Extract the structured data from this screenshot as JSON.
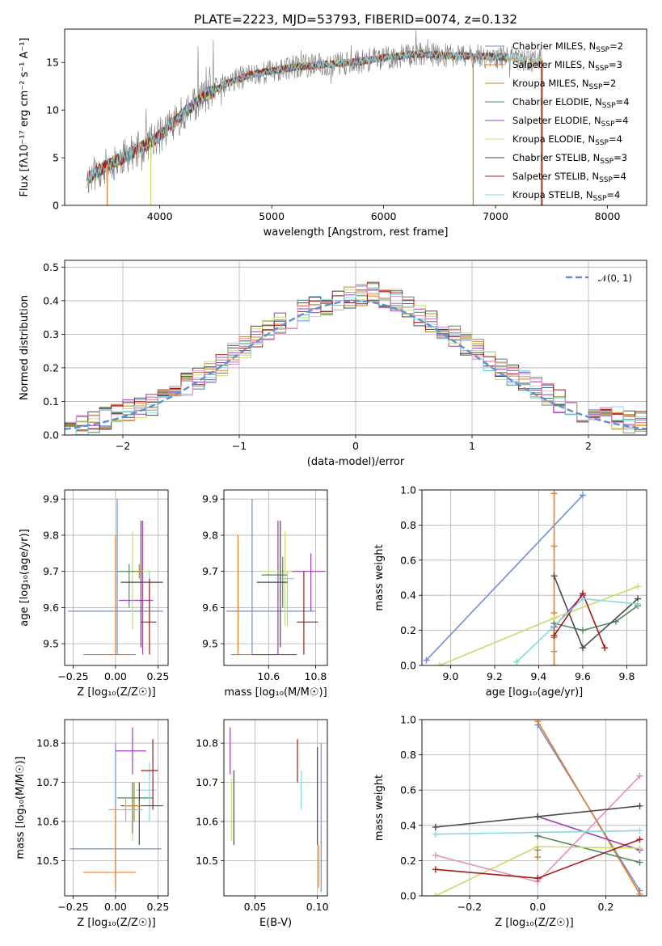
{
  "title": "PLATE=2223, MJD=53793, FIBERID=0074, z=0.132",
  "models": [
    {
      "name": "Chabrier MILES",
      "nssp": "2",
      "color": "#6d8fd6"
    },
    {
      "name": "Salpeter MILES",
      "nssp": "3",
      "color": "#e87d2a"
    },
    {
      "name": "Kroupa MILES",
      "nssp": "2",
      "color": "#b58a2e"
    },
    {
      "name": "Chabrier ELODIE",
      "nssp": "4",
      "color": "#4f8a5f"
    },
    {
      "name": "Salpeter ELODIE",
      "nssp": "4",
      "color": "#9b3cb6"
    },
    {
      "name": "Kroupa ELODIE",
      "nssp": "4",
      "color": "#c6dd6a"
    },
    {
      "name": "Chabrier STELIB",
      "nssp": "3",
      "color": "#4a4a4a"
    },
    {
      "name": "Salpeter STELIB",
      "nssp": "4",
      "color": "#a31a1a"
    },
    {
      "name": "Kroupa STELIB",
      "nssp": "4",
      "color": "#87d8e0"
    }
  ],
  "chart_data": [
    {
      "type": "line",
      "xlabel": "wavelength [Angstrom, rest frame]",
      "ylabel": "Flux [fλ10⁻¹⁷ erg cm⁻² s⁻¹ A⁻¹]",
      "xlim": [
        3150,
        8350
      ],
      "ylim": [
        0,
        18.5
      ],
      "xticks": [
        4000,
        5000,
        6000,
        7000,
        8000
      ],
      "yticks": [
        0,
        5,
        10,
        15
      ],
      "grid": false,
      "legend": "top-right",
      "series_note": "observed spectrum (grey) with nine overlapping model fits",
      "continuum": [
        [
          3350,
          2.8
        ],
        [
          3500,
          4.0
        ],
        [
          3700,
          5.2
        ],
        [
          3900,
          6.5
        ],
        [
          4000,
          7.3
        ],
        [
          4200,
          9.5
        ],
        [
          4400,
          11.5
        ],
        [
          4600,
          12.8
        ],
        [
          4800,
          13.7
        ],
        [
          5000,
          14.1
        ],
        [
          5200,
          14.5
        ],
        [
          5500,
          14.8
        ],
        [
          5800,
          15.1
        ],
        [
          6000,
          15.5
        ],
        [
          6300,
          15.9
        ],
        [
          6600,
          15.7
        ],
        [
          7000,
          15.6
        ],
        [
          7400,
          15.2
        ]
      ],
      "obs_end": 7420,
      "model_ends": [
        7100,
        7420,
        7100,
        7100,
        7100,
        7100,
        7100,
        7100,
        7420
      ],
      "dropouts": [
        {
          "x": 3530,
          "model": 1
        },
        {
          "x": 3920,
          "model": 5
        },
        {
          "x": 6800,
          "model": 2
        },
        {
          "x": 7420,
          "model": 1
        },
        {
          "x": 7410,
          "model": 7
        }
      ]
    },
    {
      "type": "line",
      "xlabel": "(data-model)/error",
      "ylabel": "Normed distribution",
      "xlim": [
        -2.5,
        2.5
      ],
      "ylim": [
        0,
        0.52
      ],
      "xticks": [
        -2,
        -1,
        0,
        1,
        2
      ],
      "yticks": [
        0.0,
        0.1,
        0.2,
        0.3,
        0.4,
        0.5
      ],
      "grid": true,
      "legend": "top-right",
      "reference_label": "𝒩(0, 1)",
      "reference": "normal-pdf",
      "bin_width": 0.1,
      "base_hist": [
        0.03,
        0.03,
        0.04,
        0.05,
        0.06,
        0.07,
        0.08,
        0.09,
        0.11,
        0.13,
        0.15,
        0.17,
        0.19,
        0.21,
        0.24,
        0.26,
        0.29,
        0.31,
        0.33,
        0.35,
        0.37,
        0.38,
        0.39,
        0.4,
        0.41,
        0.42,
        0.42,
        0.41,
        0.4,
        0.38,
        0.36,
        0.34,
        0.32,
        0.29,
        0.27,
        0.25,
        0.22,
        0.2,
        0.18,
        0.16,
        0.14,
        0.12,
        0.1,
        0.09,
        0.07,
        0.06,
        0.05,
        0.05,
        0.04,
        0.04
      ]
    },
    {
      "type": "scatter",
      "xlabel": "Z [log₁₀(Z/Z☉)]",
      "ylabel": "age  [log₁₀(age/yr)]",
      "xlim": [
        -0.3,
        0.31
      ],
      "ylim": [
        9.44,
        9.925
      ],
      "xticks": [
        -0.25,
        0.0,
        0.25
      ],
      "yticks": [
        9.5,
        9.6,
        9.7,
        9.8,
        9.9
      ],
      "grid": true,
      "points": [
        {
          "m": 0,
          "x": 0.01,
          "y": 9.59,
          "xlo": -0.28,
          "xhi": 0.28,
          "ylo": 9.47,
          "yhi": 9.9
        },
        {
          "m": 1,
          "x": 0.0,
          "y": 9.47,
          "xlo": -0.19,
          "xhi": 0.12,
          "ylo": 9.47,
          "yhi": 9.8
        },
        {
          "m": 4,
          "x": 0.16,
          "y": 9.62,
          "xlo": 0.02,
          "xhi": 0.22,
          "ylo": 9.47,
          "yhi": 9.84
        },
        {
          "m": 5,
          "x": 0.1,
          "y": 9.7,
          "xlo": 0.02,
          "xhi": 0.2,
          "ylo": 9.54,
          "yhi": 9.81
        },
        {
          "m": 3,
          "x": 0.08,
          "y": 9.7,
          "xlo": 0.01,
          "xhi": 0.12,
          "ylo": 9.6,
          "yhi": 9.72
        },
        {
          "m": 8,
          "x": 0.2,
          "y": 9.6,
          "xlo": 0.18,
          "xhi": 0.22,
          "ylo": 9.55,
          "yhi": 9.7
        },
        {
          "m": 6,
          "x": 0.15,
          "y": 9.67,
          "xlo": 0.03,
          "xhi": 0.28,
          "ylo": 9.49,
          "yhi": 9.84
        },
        {
          "m": 7,
          "x": 0.2,
          "y": 9.56,
          "xlo": 0.15,
          "xhi": 0.24,
          "ylo": 9.47,
          "yhi": 9.68
        },
        {
          "m": 2,
          "x": 0.14,
          "y": 9.7,
          "xlo": 0.12,
          "xhi": 0.16,
          "ylo": 9.68,
          "yhi": 9.72
        }
      ]
    },
    {
      "type": "scatter",
      "xlabel": "mass [log₁₀(M/M☉)]",
      "ylabel": "",
      "xlim": [
        10.41,
        10.85
      ],
      "ylim": [
        9.44,
        9.925
      ],
      "xticks": [
        10.6,
        10.8
      ],
      "yticks": [
        9.5,
        9.6,
        9.7,
        9.8,
        9.9
      ],
      "grid": true,
      "points": [
        {
          "m": 0,
          "x": 10.53,
          "y": 9.59,
          "xlo": 10.42,
          "xhi": 10.8,
          "ylo": 9.47,
          "yhi": 9.9
        },
        {
          "m": 1,
          "x": 10.47,
          "y": 9.47,
          "xlo": 10.44,
          "xhi": 10.64,
          "ylo": 9.47,
          "yhi": 9.8
        },
        {
          "m": 4,
          "x": 10.64,
          "y": 9.47,
          "xlo": 10.53,
          "xhi": 10.72,
          "ylo": 9.47,
          "yhi": 9.84
        },
        {
          "m": 5,
          "x": 10.67,
          "y": 9.7,
          "xlo": 10.57,
          "xhi": 10.7,
          "ylo": 9.55,
          "yhi": 9.81
        },
        {
          "m": 3,
          "x": 10.66,
          "y": 9.69,
          "xlo": 10.57,
          "xhi": 10.68,
          "ylo": 9.6,
          "yhi": 9.74
        },
        {
          "m": 8,
          "x": 10.68,
          "y": 9.68,
          "xlo": 10.63,
          "xhi": 10.71,
          "ylo": 9.55,
          "yhi": 9.7
        },
        {
          "m": 6,
          "x": 10.65,
          "y": 9.67,
          "xlo": 10.55,
          "xhi": 10.68,
          "ylo": 9.49,
          "yhi": 9.84
        },
        {
          "m": 4,
          "x": 10.78,
          "y": 9.7,
          "xlo": 10.7,
          "xhi": 10.84,
          "ylo": 9.59,
          "yhi": 9.75
        },
        {
          "m": 7,
          "x": 10.75,
          "y": 9.56,
          "xlo": 10.72,
          "xhi": 10.81,
          "ylo": 9.47,
          "yhi": 9.7
        }
      ]
    },
    {
      "type": "line",
      "xlabel": "age  [log₁₀(age/yr)]",
      "ylabel": "mass weight",
      "xlim": [
        8.87,
        9.89
      ],
      "ylim": [
        0,
        1
      ],
      "xticks": [
        9.0,
        9.2,
        9.4,
        9.6,
        9.8
      ],
      "yticks": [
        0.0,
        0.2,
        0.4,
        0.6,
        0.8,
        1.0
      ],
      "grid": true,
      "series": [
        {
          "m": 0,
          "x": [
            8.89,
            9.6
          ],
          "y": [
            0.03,
            0.97
          ]
        },
        {
          "m": 1,
          "x": [
            9.47,
            9.47,
            9.47,
            9.47,
            9.47
          ],
          "y": [
            0.0,
            0.08,
            0.3,
            0.68,
            0.98
          ]
        },
        {
          "m": 2,
          "x": [
            9.47,
            9.47
          ],
          "y": [
            0.16,
            0.2
          ]
        },
        {
          "m": 3,
          "x": [
            9.47,
            9.6,
            9.75,
            9.85
          ],
          "y": [
            0.24,
            0.2,
            0.25,
            0.34
          ]
        },
        {
          "m": 4,
          "x": [
            9.47,
            9.6
          ],
          "y": [
            0.22,
            0.4
          ]
        },
        {
          "m": 5,
          "x": [
            8.95,
            9.47,
            9.85
          ],
          "y": [
            0.0,
            0.27,
            0.45
          ]
        },
        {
          "m": 6,
          "x": [
            9.47,
            9.6,
            9.85
          ],
          "y": [
            0.51,
            0.1,
            0.38
          ]
        },
        {
          "m": 7,
          "x": [
            9.47,
            9.6,
            9.7
          ],
          "y": [
            0.17,
            0.41,
            0.1
          ]
        },
        {
          "m": 8,
          "x": [
            9.3,
            9.6,
            9.85
          ],
          "y": [
            0.02,
            0.38,
            0.35
          ]
        }
      ]
    },
    {
      "type": "scatter",
      "xlabel": "Z [log₁₀(Z/Z☉)]",
      "ylabel": "mass [log₁₀(M/M☉)]",
      "xlim": [
        -0.3,
        0.31
      ],
      "ylim": [
        10.41,
        10.86
      ],
      "xticks": [
        -0.25,
        0.0,
        0.25
      ],
      "yticks": [
        10.5,
        10.6,
        10.7,
        10.8
      ],
      "grid": true,
      "points": [
        {
          "m": 0,
          "x": 0.0,
          "y": 10.53,
          "xlo": -0.27,
          "xhi": 0.27,
          "ylo": 10.42,
          "yhi": 10.8
        },
        {
          "m": 1,
          "x": 0.0,
          "y": 10.47,
          "xlo": -0.19,
          "xhi": 0.12,
          "ylo": 10.43,
          "yhi": 10.64
        },
        {
          "m": 4,
          "x": 0.1,
          "y": 10.78,
          "xlo": 0.0,
          "xhi": 0.18,
          "ylo": 10.72,
          "yhi": 10.84
        },
        {
          "m": 5,
          "x": 0.1,
          "y": 10.66,
          "xlo": 0.02,
          "xhi": 0.2,
          "ylo": 10.55,
          "yhi": 10.7
        },
        {
          "m": 3,
          "x": 0.1,
          "y": 10.66,
          "xlo": 0.01,
          "xhi": 0.22,
          "ylo": 10.57,
          "yhi": 10.7
        },
        {
          "m": 8,
          "x": 0.2,
          "y": 10.68,
          "xlo": 0.12,
          "xhi": 0.24,
          "ylo": 10.6,
          "yhi": 10.75
        },
        {
          "m": 6,
          "x": 0.14,
          "y": 10.64,
          "xlo": 0.03,
          "xhi": 0.28,
          "ylo": 10.54,
          "yhi": 10.7
        },
        {
          "m": 2,
          "x": 0.11,
          "y": 10.64,
          "xlo": 0.05,
          "xhi": 0.15,
          "ylo": 10.6,
          "yhi": 10.7
        },
        {
          "m": 9,
          "x": 0.06,
          "y": 10.63,
          "xlo": -0.04,
          "xhi": 0.16,
          "ylo": 10.6,
          "yhi": 10.66
        },
        {
          "m": 7,
          "x": 0.22,
          "y": 10.73,
          "xlo": 0.15,
          "xhi": 0.25,
          "ylo": 10.63,
          "yhi": 10.81
        }
      ]
    },
    {
      "type": "scatter",
      "xlabel": "E(B-V)",
      "ylabel": "",
      "xlim": [
        0.025,
        0.108
      ],
      "ylim": [
        10.41,
        10.86
      ],
      "xticks": [
        0.05,
        0.1
      ],
      "yticks": [
        10.5,
        10.6,
        10.7,
        10.8
      ],
      "grid": true,
      "points": [
        {
          "m": 4,
          "x": 0.03,
          "y": 10.78,
          "ylo": 10.72,
          "yhi": 10.84
        },
        {
          "m": 5,
          "x": 0.031,
          "y": 10.65,
          "ylo": 10.55,
          "yhi": 10.71
        },
        {
          "m": 6,
          "x": 0.033,
          "y": 10.64,
          "ylo": 10.54,
          "yhi": 10.73
        },
        {
          "m": 7,
          "x": 0.084,
          "y": 10.76,
          "ylo": 10.7,
          "yhi": 10.81
        },
        {
          "m": 8,
          "x": 0.087,
          "y": 10.68,
          "ylo": 10.63,
          "yhi": 10.73
        },
        {
          "m": 6,
          "x": 0.1,
          "y": 10.65,
          "ylo": 10.54,
          "yhi": 10.79
        },
        {
          "m": 1,
          "x": 0.101,
          "y": 10.48,
          "ylo": 10.43,
          "yhi": 10.54
        },
        {
          "m": 0,
          "x": 0.103,
          "y": 10.6,
          "ylo": 10.42,
          "yhi": 10.8
        }
      ]
    },
    {
      "type": "line",
      "xlabel": "Z [log₁₀(Z/Z☉)]",
      "ylabel": "mass weight",
      "xlim": [
        -0.34,
        0.32
      ],
      "ylim": [
        0,
        1
      ],
      "xticks": [
        -0.2,
        0.0,
        0.2
      ],
      "yticks": [
        0.0,
        0.2,
        0.4,
        0.6,
        0.8,
        1.0
      ],
      "grid": true,
      "series": [
        {
          "m": 0,
          "x": [
            0.0,
            0.3
          ],
          "y": [
            0.97,
            0.03
          ]
        },
        {
          "m": 1,
          "x": [
            0.0,
            0.3
          ],
          "y": [
            0.99,
            0.01
          ]
        },
        {
          "m": 3,
          "x": [
            0.0,
            0.3
          ],
          "y": [
            0.34,
            0.19
          ]
        },
        {
          "m": 4,
          "x": [
            0.0,
            0.3
          ],
          "y": [
            0.45,
            0.26
          ]
        },
        {
          "m": 5,
          "x": [
            -0.3,
            0.0,
            0.3
          ],
          "y": [
            0.0,
            0.28,
            0.27
          ]
        },
        {
          "m": 9,
          "x": [
            -0.3,
            0.0,
            0.3
          ],
          "y": [
            0.23,
            0.08,
            0.68
          ]
        },
        {
          "m": 6,
          "x": [
            -0.3,
            0.0,
            0.3
          ],
          "y": [
            0.39,
            0.45,
            0.51
          ]
        },
        {
          "m": 7,
          "x": [
            -0.3,
            0.0,
            0.3
          ],
          "y": [
            0.15,
            0.1,
            0.32
          ]
        },
        {
          "m": 8,
          "x": [
            -0.3,
            0.3
          ],
          "y": [
            0.35,
            0.37
          ]
        },
        {
          "m": 2,
          "x": [
            0.0,
            0.0
          ],
          "y": [
            0.22,
            0.26
          ]
        }
      ]
    }
  ]
}
